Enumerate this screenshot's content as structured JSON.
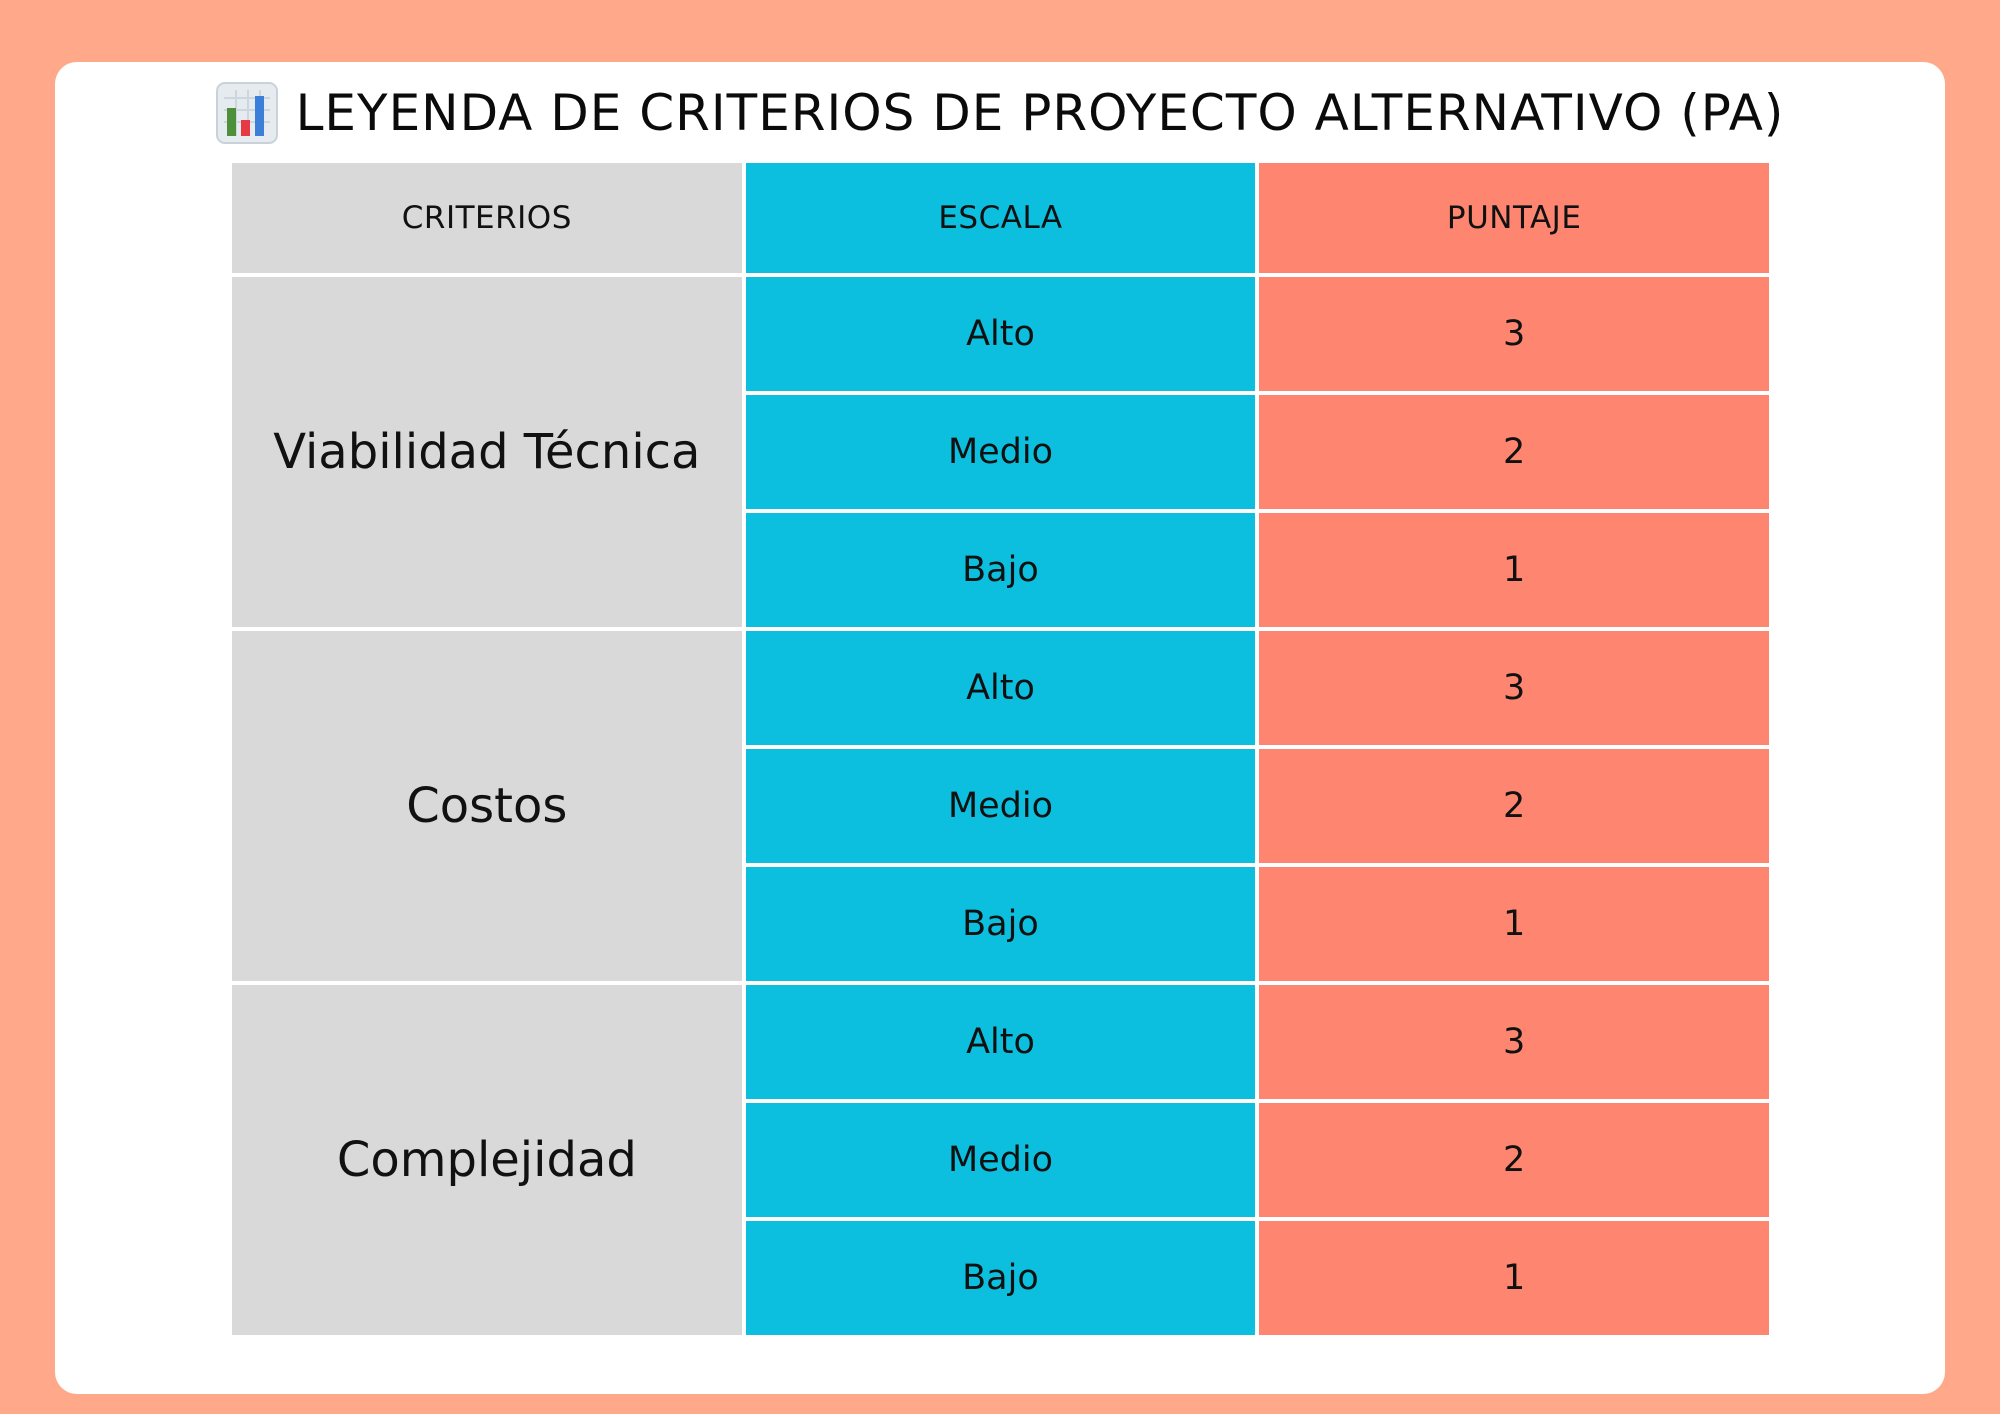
{
  "title": "LEYENDA DE CRITERIOS DE PROYECTO ALTERNATIVO (PA)",
  "icon": "bar-chart-icon",
  "colors": {
    "background": "#FFA98A",
    "card": "#FFFFFF",
    "criterios_column": "#D9D9D9",
    "escala_column": "#0DBFDF",
    "puntaje_column": "#FE8670"
  },
  "table": {
    "headers": [
      "CRITERIOS",
      "ESCALA",
      "PUNTAJE"
    ],
    "groups": [
      {
        "criterio": "Viabilidad Técnica",
        "rows": [
          {
            "escala": "Alto",
            "puntaje": "3"
          },
          {
            "escala": "Medio",
            "puntaje": "2"
          },
          {
            "escala": "Bajo",
            "puntaje": "1"
          }
        ]
      },
      {
        "criterio": "Costos",
        "rows": [
          {
            "escala": "Alto",
            "puntaje": "3"
          },
          {
            "escala": "Medio",
            "puntaje": "2"
          },
          {
            "escala": "Bajo",
            "puntaje": "1"
          }
        ]
      },
      {
        "criterio": "Complejidad",
        "rows": [
          {
            "escala": "Alto",
            "puntaje": "3"
          },
          {
            "escala": "Medio",
            "puntaje": "2"
          },
          {
            "escala": "Bajo",
            "puntaje": "1"
          }
        ]
      }
    ]
  }
}
